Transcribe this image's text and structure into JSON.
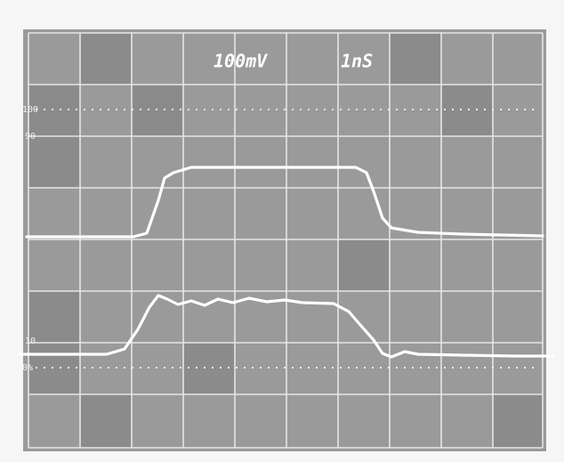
{
  "screen": {
    "volts_per_div": "100mV",
    "time_per_div": "1nS"
  },
  "labels": {
    "top": "100",
    "upper": "90",
    "lower": "10",
    "bottom": "0%"
  }
}
